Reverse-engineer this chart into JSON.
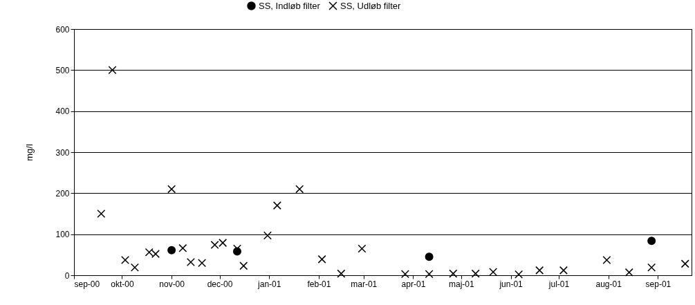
{
  "chart_data": {
    "type": "scatter",
    "ylabel": "mg/l",
    "xlim": [
      "2000-09-01",
      "2001-09-22"
    ],
    "xticks": [
      {
        "value": "2000-09-01",
        "label": "sep-00"
      },
      {
        "value": "2000-10-01",
        "label": "okt-00"
      },
      {
        "value": "2000-11-01",
        "label": "nov-00"
      },
      {
        "value": "2000-12-01",
        "label": "dec-00"
      },
      {
        "value": "2001-01-01",
        "label": "jan-01"
      },
      {
        "value": "2001-02-01",
        "label": "feb-01"
      },
      {
        "value": "2001-03-01",
        "label": "mar-01"
      },
      {
        "value": "2001-04-01",
        "label": "apr-01"
      },
      {
        "value": "2001-05-01",
        "label": "maj-01"
      },
      {
        "value": "2001-06-01",
        "label": "jun-01"
      },
      {
        "value": "2001-07-01",
        "label": "jul-01"
      },
      {
        "value": "2001-08-01",
        "label": "aug-01"
      },
      {
        "value": "2001-09-01",
        "label": "sep-01"
      }
    ],
    "ylim": [
      0,
      600
    ],
    "yticks": [
      0,
      100,
      200,
      300,
      400,
      500,
      600
    ],
    "grid": "y",
    "legend": "top",
    "series": [
      {
        "name": "SS, Indløb filter",
        "color": "#000000",
        "marker": "circle",
        "x": [
          "2000-11-01",
          "2000-12-12",
          "2001-04-11",
          "2001-08-28"
        ],
        "values": [
          61,
          58,
          45,
          84
        ]
      },
      {
        "name": "SS, Udløb filter",
        "color": "#000000",
        "marker": "cross",
        "x": [
          "2000-09-18",
          "2000-09-25",
          "2000-10-03",
          "2000-10-09",
          "2000-10-18",
          "2000-10-22",
          "2000-11-01",
          "2000-11-08",
          "2000-11-13",
          "2000-11-20",
          "2000-11-28",
          "2000-12-03",
          "2000-12-12",
          "2000-12-16",
          "2000-12-31",
          "2001-01-06",
          "2001-01-20",
          "2001-02-03",
          "2001-02-15",
          "2001-02-28",
          "2001-03-27",
          "2001-04-11",
          "2001-04-26",
          "2001-05-10",
          "2001-05-21",
          "2001-06-06",
          "2001-06-19",
          "2001-07-04",
          "2001-07-31",
          "2001-08-14",
          "2001-08-28",
          "2001-09-18"
        ],
        "values": [
          150,
          500,
          37,
          19,
          56,
          52,
          210,
          66,
          32,
          30,
          74,
          79,
          65,
          23,
          97,
          170,
          210,
          39,
          4,
          65,
          3,
          3,
          4,
          4,
          8,
          2,
          12,
          12,
          37,
          7,
          19,
          28
        ]
      }
    ]
  }
}
